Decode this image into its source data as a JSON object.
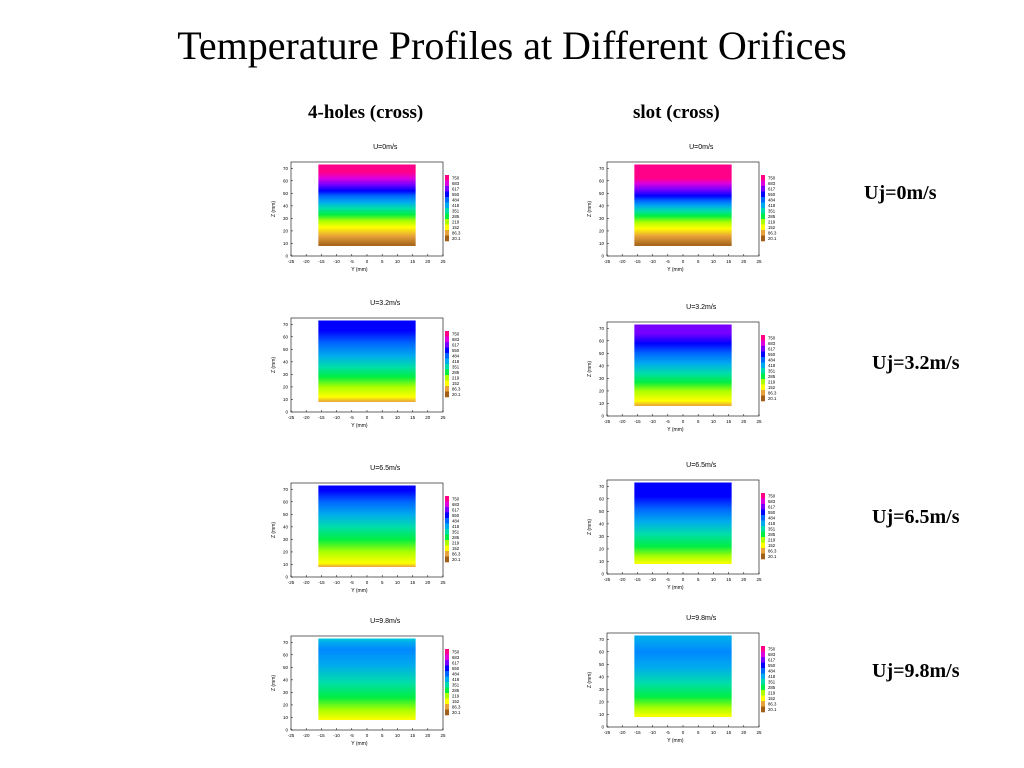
{
  "slide": {
    "title": "Temperature Profiles at Different Orifices",
    "columns": [
      "4-holes (cross)",
      "slot (cross)"
    ],
    "row_labels": [
      "Uj=0m/s",
      "Uj=3.2m/s",
      "Uj=6.5m/s",
      "Uj=9.8m/s"
    ]
  },
  "colors": {
    "colormap": [
      "#a0601a",
      "#e8a23a",
      "#ffff00",
      "#aaff00",
      "#00ee44",
      "#00ddaa",
      "#00aaee",
      "#0066ff",
      "#0000ff",
      "#7700ff",
      "#dd00dd",
      "#ff0088"
    ]
  },
  "chart_data": [
    {
      "type": "heatmap",
      "panel": "4-holes (cross)",
      "title": "U=0m/s",
      "xlabel": "Y (mm)",
      "ylabel": "Z (mm)",
      "xticks": [
        "-25",
        "-20",
        "-15",
        "-10",
        "-5",
        "0",
        "5",
        "10",
        "15",
        "20",
        "25"
      ],
      "yticks": [
        "0",
        "10",
        "20",
        "30",
        "40",
        "50",
        "60",
        "70"
      ],
      "xlim": [
        -25,
        25
      ],
      "ylim": [
        0,
        75
      ],
      "data_extent": {
        "y_mm": [
          -16,
          16
        ],
        "z_mm": [
          8,
          73
        ]
      },
      "colorbar_levels": [
        "750",
        "683",
        "617",
        "550",
        "484",
        "418",
        "351",
        "285",
        "219",
        "152",
        "86.3",
        "20.1"
      ],
      "colorbar_labels": [
        "750",
        "683",
        "617",
        "550",
        "484",
        "418",
        "351",
        "285",
        "219",
        "152",
        "86.3",
        "20.1"
      ],
      "profile": [
        [
          8,
          "#a0601a"
        ],
        [
          16,
          "#e8a23a"
        ],
        [
          23,
          "#ffff00"
        ],
        [
          28,
          "#aaff00"
        ],
        [
          33,
          "#00ee44"
        ],
        [
          38,
          "#00ddaa"
        ],
        [
          43,
          "#00aaee"
        ],
        [
          48,
          "#0066ff"
        ],
        [
          52,
          "#0000ff"
        ],
        [
          57,
          "#7700ff"
        ],
        [
          62,
          "#dd00dd"
        ],
        [
          67,
          "#ff0088"
        ],
        [
          73,
          "#ff0088"
        ]
      ]
    },
    {
      "type": "heatmap",
      "panel": "slot (cross)",
      "title": "U=0m/s",
      "xlabel": "Y (mm)",
      "ylabel": "Z (mm)",
      "xticks": [
        "-25",
        "-20",
        "-15",
        "-10",
        "-5",
        "0",
        "5",
        "10",
        "15",
        "20",
        "25"
      ],
      "yticks": [
        "0",
        "10",
        "20",
        "30",
        "40",
        "50",
        "60",
        "70"
      ],
      "xlim": [
        -25,
        25
      ],
      "ylim": [
        0,
        75
      ],
      "data_extent": {
        "y_mm": [
          -16,
          16
        ],
        "z_mm": [
          8,
          73
        ]
      },
      "colorbar_levels": [
        "750",
        "683",
        "617",
        "550",
        "484",
        "418",
        "351",
        "285",
        "219",
        "152",
        "86.3",
        "20.1"
      ],
      "colorbar_labels": [
        "750",
        "683",
        "617",
        "550",
        "484",
        "418",
        "351",
        "285",
        "219",
        "152",
        "86.3",
        "20.1"
      ],
      "profile": [
        [
          8,
          "#a0601a"
        ],
        [
          16,
          "#e8a23a"
        ],
        [
          22,
          "#ffff00"
        ],
        [
          27,
          "#aaff00"
        ],
        [
          32,
          "#00ee44"
        ],
        [
          36,
          "#00ddaa"
        ],
        [
          40,
          "#00aaee"
        ],
        [
          44,
          "#0066ff"
        ],
        [
          48,
          "#0000ff"
        ],
        [
          53,
          "#7700ff"
        ],
        [
          58,
          "#dd00dd"
        ],
        [
          62,
          "#ff0088"
        ],
        [
          73,
          "#ff0088"
        ]
      ]
    },
    {
      "type": "heatmap",
      "panel": "4-holes (cross)",
      "title": "U=3.2m/s",
      "xlabel": "Y (mm)",
      "ylabel": "Z (mm)",
      "xticks": [
        "-25",
        "-20",
        "-15",
        "-10",
        "-5",
        "0",
        "5",
        "10",
        "15",
        "20",
        "25"
      ],
      "yticks": [
        "0",
        "10",
        "20",
        "30",
        "40",
        "50",
        "60",
        "70"
      ],
      "xlim": [
        -25,
        25
      ],
      "ylim": [
        0,
        75
      ],
      "data_extent": {
        "y_mm": [
          -16,
          16
        ],
        "z_mm": [
          8,
          73
        ]
      },
      "colorbar_levels": [
        "750",
        "683",
        "617",
        "550",
        "484",
        "418",
        "351",
        "285",
        "219",
        "152",
        "86.3",
        "20.1"
      ],
      "colorbar_labels": [
        "750",
        "683",
        "617",
        "550",
        "484",
        "418",
        "351",
        "285",
        "219",
        "152",
        "86.3",
        "20.1"
      ],
      "profile": [
        [
          8,
          "#e8a23a"
        ],
        [
          12,
          "#ffff00"
        ],
        [
          20,
          "#aaff00"
        ],
        [
          28,
          "#00ee44"
        ],
        [
          36,
          "#00ddaa"
        ],
        [
          45,
          "#00aaee"
        ],
        [
          55,
          "#0066ff"
        ],
        [
          65,
          "#0000ff"
        ],
        [
          73,
          "#0000ff"
        ]
      ]
    },
    {
      "type": "heatmap",
      "panel": "slot (cross)",
      "title": "U=3.2m/s",
      "xlabel": "Y (mm)",
      "ylabel": "Z (mm)",
      "xticks": [
        "-25",
        "-20",
        "-15",
        "-10",
        "-5",
        "0",
        "5",
        "10",
        "15",
        "20",
        "25"
      ],
      "yticks": [
        "0",
        "10",
        "20",
        "30",
        "40",
        "50",
        "60",
        "70"
      ],
      "xlim": [
        -25,
        25
      ],
      "ylim": [
        0,
        75
      ],
      "data_extent": {
        "y_mm": [
          -16,
          16
        ],
        "z_mm": [
          8,
          73
        ]
      },
      "colorbar_levels": [
        "750",
        "683",
        "617",
        "550",
        "484",
        "418",
        "351",
        "285",
        "219",
        "152",
        "86.3",
        "20.1"
      ],
      "colorbar_labels": [
        "750",
        "683",
        "617",
        "550",
        "484",
        "418",
        "351",
        "285",
        "219",
        "152",
        "86.3",
        "20.1"
      ],
      "profile": [
        [
          8,
          "#e8a23a"
        ],
        [
          12,
          "#ffff00"
        ],
        [
          20,
          "#aaff00"
        ],
        [
          27,
          "#00ee44"
        ],
        [
          34,
          "#00ddaa"
        ],
        [
          42,
          "#00aaee"
        ],
        [
          50,
          "#0066ff"
        ],
        [
          58,
          "#0000ff"
        ],
        [
          66,
          "#7700ff"
        ],
        [
          73,
          "#7700ff"
        ]
      ]
    },
    {
      "type": "heatmap",
      "panel": "4-holes (cross)",
      "title": "U=6.5m/s",
      "xlabel": "Y (mm)",
      "ylabel": "Z (mm)",
      "xticks": [
        "-25",
        "-20",
        "-15",
        "-10",
        "-5",
        "0",
        "5",
        "10",
        "15",
        "20",
        "25"
      ],
      "yticks": [
        "0",
        "10",
        "20",
        "30",
        "40",
        "50",
        "60",
        "70"
      ],
      "xlim": [
        -25,
        25
      ],
      "ylim": [
        0,
        75
      ],
      "data_extent": {
        "y_mm": [
          -16,
          16
        ],
        "z_mm": [
          8,
          73
        ]
      },
      "colorbar_levels": [
        "750",
        "683",
        "617",
        "550",
        "484",
        "418",
        "351",
        "285",
        "219",
        "152",
        "86.3",
        "20.1"
      ],
      "colorbar_labels": [
        "750",
        "683",
        "617",
        "550",
        "484",
        "418",
        "351",
        "285",
        "219",
        "152",
        "86.3",
        "20.1"
      ],
      "profile": [
        [
          8,
          "#e8a23a"
        ],
        [
          11,
          "#ffff00"
        ],
        [
          20,
          "#aaff00"
        ],
        [
          30,
          "#00ee44"
        ],
        [
          40,
          "#00ddaa"
        ],
        [
          50,
          "#00aaee"
        ],
        [
          60,
          "#0066ff"
        ],
        [
          69,
          "#0000ff"
        ],
        [
          73,
          "#0000ff"
        ]
      ]
    },
    {
      "type": "heatmap",
      "panel": "slot (cross)",
      "title": "U=6.5m/s",
      "xlabel": "Y (mm)",
      "ylabel": "Z (mm)",
      "xticks": [
        "-25",
        "-20",
        "-15",
        "-10",
        "-5",
        "0",
        "5",
        "10",
        "15",
        "20",
        "25"
      ],
      "yticks": [
        "0",
        "10",
        "20",
        "30",
        "40",
        "50",
        "60",
        "70"
      ],
      "xlim": [
        -25,
        25
      ],
      "ylim": [
        0,
        75
      ],
      "data_extent": {
        "y_mm": [
          -16,
          16
        ],
        "z_mm": [
          8,
          73
        ]
      },
      "colorbar_levels": [
        "750",
        "683",
        "617",
        "550",
        "484",
        "418",
        "351",
        "285",
        "219",
        "152",
        "86.3",
        "20.1"
      ],
      "colorbar_labels": [
        "750",
        "683",
        "617",
        "550",
        "484",
        "418",
        "351",
        "285",
        "219",
        "152",
        "86.3",
        "20.1"
      ],
      "profile": [
        [
          8,
          "#ffff00"
        ],
        [
          14,
          "#aaff00"
        ],
        [
          22,
          "#00ee44"
        ],
        [
          32,
          "#00ddaa"
        ],
        [
          42,
          "#00aaee"
        ],
        [
          52,
          "#0066ff"
        ],
        [
          62,
          "#0000ff"
        ],
        [
          73,
          "#0000ff"
        ]
      ]
    },
    {
      "type": "heatmap",
      "panel": "4-holes (cross)",
      "title": "U=9.8m/s",
      "xlabel": "Y (mm)",
      "ylabel": "Z (mm)",
      "xticks": [
        "-25",
        "-20",
        "-15",
        "-10",
        "-5",
        "0",
        "5",
        "10",
        "15",
        "20",
        "25"
      ],
      "yticks": [
        "0",
        "10",
        "20",
        "30",
        "40",
        "50",
        "60",
        "70"
      ],
      "xlim": [
        -25,
        25
      ],
      "ylim": [
        0,
        75
      ],
      "data_extent": {
        "y_mm": [
          -16,
          16
        ],
        "z_mm": [
          8,
          73
        ]
      },
      "colorbar_levels": [
        "750",
        "683",
        "617",
        "550",
        "484",
        "418",
        "351",
        "285",
        "219",
        "152",
        "86.3",
        "20.1"
      ],
      "colorbar_labels": [
        "750",
        "683",
        "617",
        "550",
        "484",
        "418",
        "351",
        "285",
        "219",
        "152",
        "86.3",
        "20.1"
      ],
      "profile": [
        [
          8,
          "#ffff00"
        ],
        [
          16,
          "#aaff00"
        ],
        [
          26,
          "#00ee44"
        ],
        [
          38,
          "#00ddaa"
        ],
        [
          52,
          "#00aaee"
        ],
        [
          64,
          "#0088ff"
        ],
        [
          70,
          "#00aaee"
        ],
        [
          73,
          "#00ccdd"
        ]
      ]
    },
    {
      "type": "heatmap",
      "panel": "slot (cross)",
      "title": "U=9.8m/s",
      "xlabel": "Y (mm)",
      "ylabel": "Z (mm)",
      "xticks": [
        "-25",
        "-20",
        "-15",
        "-10",
        "-5",
        "0",
        "5",
        "10",
        "15",
        "20",
        "25"
      ],
      "yticks": [
        "0",
        "10",
        "20",
        "30",
        "40",
        "50",
        "60",
        "70"
      ],
      "xlim": [
        -25,
        25
      ],
      "ylim": [
        0,
        75
      ],
      "data_extent": {
        "y_mm": [
          -16,
          16
        ],
        "z_mm": [
          8,
          73
        ]
      },
      "colorbar_levels": [
        "750",
        "683",
        "617",
        "550",
        "484",
        "418",
        "351",
        "285",
        "219",
        "152",
        "86.3",
        "20.1"
      ],
      "colorbar_labels": [
        "750",
        "683",
        "617",
        "550",
        "484",
        "418",
        "351",
        "285",
        "219",
        "152",
        "86.3",
        "20.1"
      ],
      "profile": [
        [
          8,
          "#ffff00"
        ],
        [
          15,
          "#aaff00"
        ],
        [
          24,
          "#00ee44"
        ],
        [
          35,
          "#00ddaa"
        ],
        [
          48,
          "#00aaee"
        ],
        [
          60,
          "#0088ff"
        ],
        [
          70,
          "#00aaee"
        ],
        [
          73,
          "#00aaee"
        ]
      ]
    }
  ]
}
